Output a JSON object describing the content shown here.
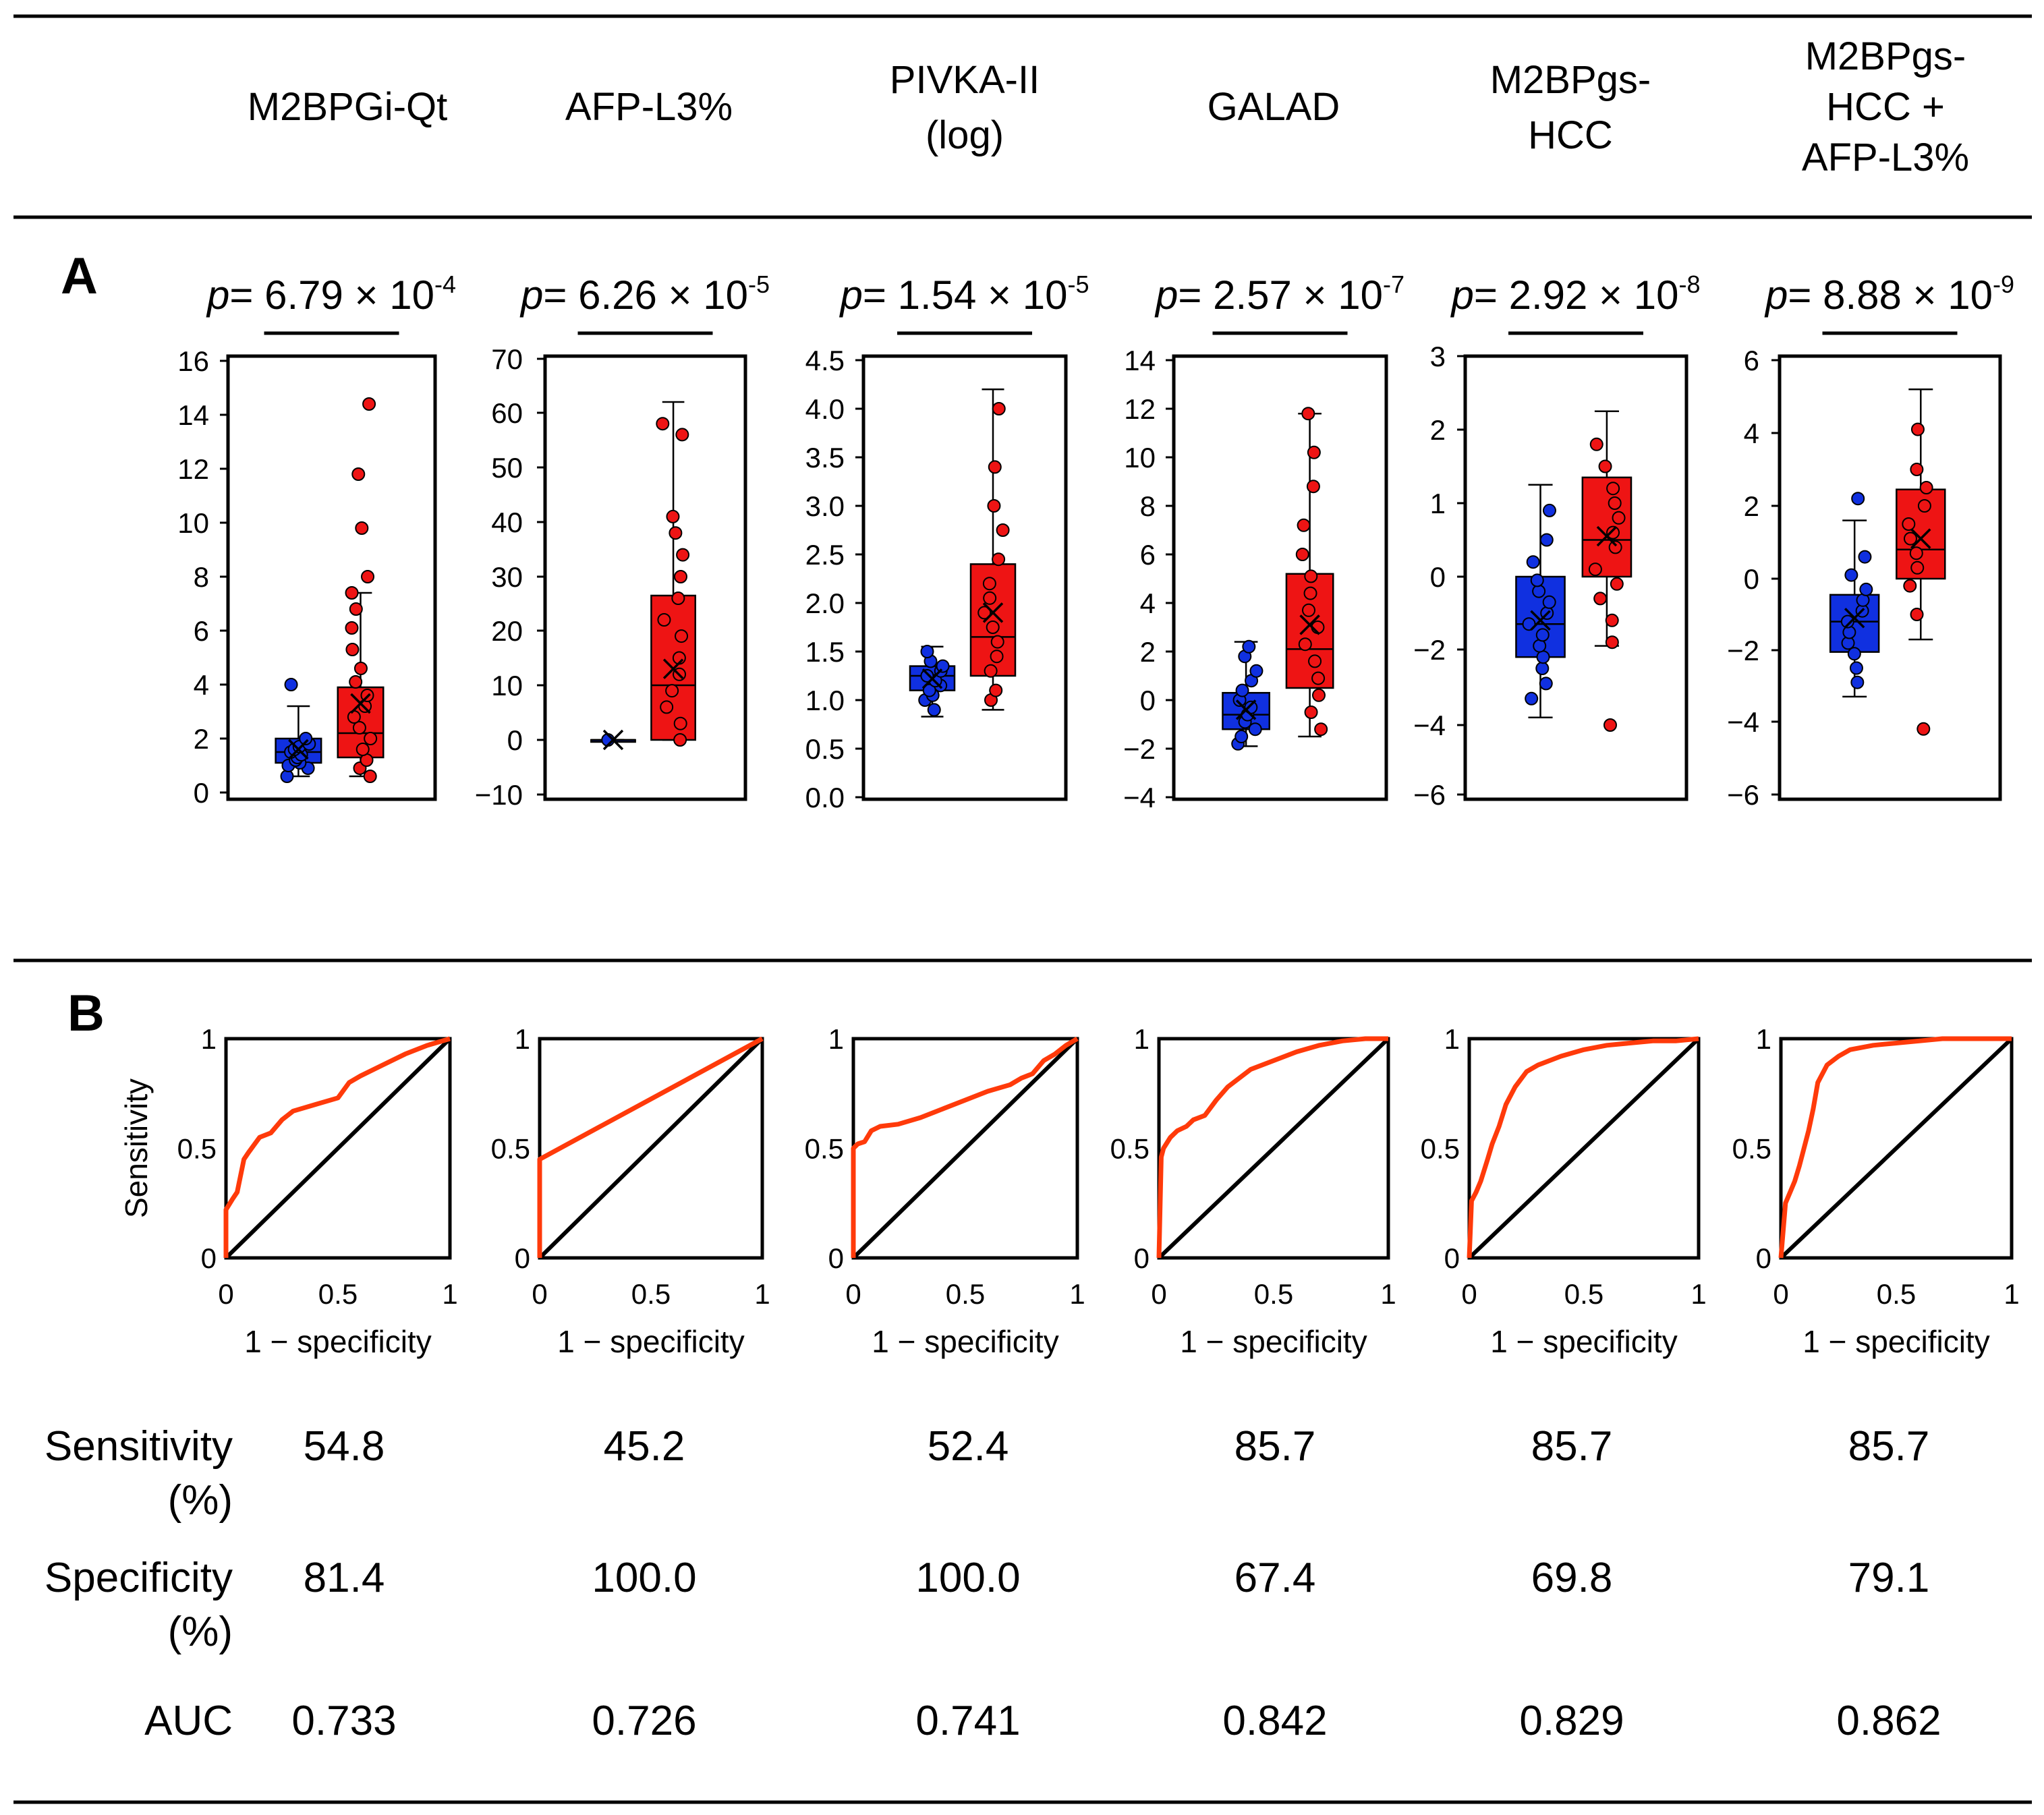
{
  "columns": [
    {
      "label": [
        "M2BPGi-Qt"
      ]
    },
    {
      "label": [
        "AFP-L3%"
      ]
    },
    {
      "label": [
        "PIVKA-II",
        "(log)"
      ]
    },
    {
      "label": [
        "GALAD"
      ]
    },
    {
      "label": [
        "M2BPgs-",
        "HCC"
      ]
    },
    {
      "label": [
        "M2BPgs-",
        "HCC +",
        "AFP-L3%"
      ]
    }
  ],
  "panels": {
    "a": "A",
    "b": "B"
  },
  "p_prefix": "p",
  "p_equals": "= ",
  "p_times": " × 10",
  "colors": {
    "group1": "#1030e0",
    "group2": "#ee1414",
    "roc": "#ff3a0a",
    "line": "#000000"
  },
  "roc_axis": {
    "xlabel": "1 − specificity",
    "ylabel": "Sensitivity",
    "xticks": [
      "0",
      "0.5",
      "1"
    ],
    "yticks": [
      "0",
      "0.5",
      "1"
    ]
  },
  "table": {
    "rows": [
      {
        "label": [
          "Sensitivity",
          "(%)"
        ],
        "values": [
          "54.8",
          "45.2",
          "52.4",
          "85.7",
          "85.7",
          "85.7"
        ]
      },
      {
        "label": [
          "Specificity",
          "(%)"
        ],
        "values": [
          "81.4",
          "100.0",
          "100.0",
          "67.4",
          "69.8",
          "79.1"
        ]
      },
      {
        "label": [
          "AUC"
        ],
        "values": [
          "0.733",
          "0.726",
          "0.741",
          "0.842",
          "0.829",
          "0.862"
        ]
      }
    ]
  },
  "chart_data": [
    {
      "type": "box",
      "title": "M2BPGi-Qt",
      "p_value": {
        "mantissa": "6.79",
        "exponent": "-4"
      },
      "ylim": [
        0,
        16
      ],
      "yticks": [
        "0",
        "2",
        "4",
        "6",
        "8",
        "10",
        "12",
        "14",
        "16"
      ],
      "groups": [
        {
          "color": "#1030e0",
          "min": 0.6,
          "q1": 1.1,
          "median": 1.5,
          "q3": 2.0,
          "max": 3.2,
          "mean": 1.6,
          "points": [
            0.6,
            0.9,
            1.0,
            1.1,
            1.2,
            1.3,
            1.4,
            1.5,
            1.6,
            1.7,
            1.8,
            2.0,
            4.0
          ]
        },
        {
          "color": "#ee1414",
          "min": 0.6,
          "q1": 1.3,
          "median": 2.2,
          "q3": 3.9,
          "max": 7.4,
          "mean": 3.3,
          "points": [
            0.6,
            0.9,
            1.2,
            1.6,
            2.0,
            2.4,
            2.8,
            3.2,
            3.6,
            4.1,
            4.6,
            5.3,
            6.1,
            6.8,
            7.4,
            8.0,
            9.8,
            11.8,
            14.4
          ]
        }
      ]
    },
    {
      "type": "box",
      "title": "AFP-L3%",
      "p_value": {
        "mantissa": "6.26",
        "exponent": "-5"
      },
      "ylim": [
        -10,
        70
      ],
      "yticks": [
        "−10",
        "0",
        "10",
        "20",
        "30",
        "40",
        "50",
        "60",
        "70"
      ],
      "groups": [
        {
          "color": "#1030e0",
          "min": 0,
          "q1": 0,
          "median": 0,
          "q3": 0,
          "max": 0,
          "mean": 0,
          "points": [
            0
          ]
        },
        {
          "color": "#ee1414",
          "min": 0,
          "q1": 0,
          "median": 10,
          "q3": 26.5,
          "max": 62,
          "mean": 13,
          "points": [
            0,
            3,
            6,
            9,
            12,
            15,
            19,
            22,
            26,
            30,
            34,
            38,
            41,
            56,
            58
          ]
        }
      ]
    },
    {
      "type": "box",
      "title": "PIVKA-II (log)",
      "p_value": {
        "mantissa": "1.54",
        "exponent": "-5"
      },
      "ylim": [
        0,
        4.5
      ],
      "yticks": [
        "0.0",
        "0.5",
        "1.0",
        "1.5",
        "2.0",
        "2.5",
        "3.0",
        "3.5",
        "4.0",
        "4.5"
      ],
      "groups": [
        {
          "color": "#1030e0",
          "min": 0.83,
          "q1": 1.1,
          "median": 1.25,
          "q3": 1.35,
          "max": 1.55,
          "mean": 1.22,
          "points": [
            0.9,
            1.0,
            1.05,
            1.1,
            1.15,
            1.2,
            1.25,
            1.3,
            1.35,
            1.4,
            1.5
          ]
        },
        {
          "color": "#ee1414",
          "min": 0.9,
          "q1": 1.25,
          "median": 1.65,
          "q3": 2.4,
          "max": 4.2,
          "mean": 1.9,
          "points": [
            1.0,
            1.1,
            1.3,
            1.45,
            1.6,
            1.75,
            1.9,
            2.05,
            2.2,
            2.45,
            2.75,
            3.0,
            3.4,
            4.0
          ]
        }
      ]
    },
    {
      "type": "box",
      "title": "GALAD",
      "p_value": {
        "mantissa": "2.57",
        "exponent": "-7"
      },
      "ylim": [
        -4,
        14
      ],
      "yticks": [
        "−4",
        "−2",
        "0",
        "2",
        "4",
        "6",
        "8",
        "10",
        "12",
        "14"
      ],
      "groups": [
        {
          "color": "#1030e0",
          "min": -1.9,
          "q1": -1.2,
          "median": -0.6,
          "q3": 0.3,
          "max": 2.4,
          "mean": -0.4,
          "points": [
            -1.8,
            -1.5,
            -1.2,
            -0.9,
            -0.6,
            -0.3,
            0.0,
            0.4,
            0.8,
            1.2,
            1.8,
            2.2
          ]
        },
        {
          "color": "#ee1414",
          "min": -1.5,
          "q1": 0.5,
          "median": 2.1,
          "q3": 5.2,
          "max": 11.8,
          "mean": 3.1,
          "points": [
            -1.2,
            -0.5,
            0.2,
            0.9,
            1.6,
            2.3,
            3.0,
            3.7,
            4.4,
            5.1,
            6.0,
            7.2,
            8.8,
            10.2,
            11.8
          ]
        }
      ]
    },
    {
      "type": "box",
      "title": "M2BPgs-HCC",
      "p_value": {
        "mantissa": "2.92",
        "exponent": "-8"
      },
      "ylim": [
        -6,
        3
      ],
      "yticks": [
        "−6",
        "−4",
        "−2",
        "0",
        "1",
        "2",
        "3"
      ],
      "groups": [
        {
          "color": "#1030e0",
          "min": -3.8,
          "q1": -2.2,
          "median": -1.3,
          "q3": 0.0,
          "max": 1.25,
          "mean": -1.2,
          "points": [
            -3.3,
            -2.9,
            -2.5,
            -2.2,
            -1.9,
            -1.6,
            -1.3,
            -1.0,
            -0.7,
            -0.4,
            -0.1,
            0.2,
            0.5,
            0.9
          ]
        },
        {
          "color": "#ee1414",
          "min": -1.9,
          "q1": 0.0,
          "median": 0.5,
          "q3": 1.35,
          "max": 2.25,
          "mean": 0.55,
          "points": [
            -4.0,
            -1.8,
            -1.2,
            -0.6,
            -0.2,
            0.1,
            0.4,
            0.6,
            0.8,
            1.0,
            1.2,
            1.5,
            1.8
          ]
        }
      ]
    },
    {
      "type": "box",
      "title": "M2BPgs-HCC + AFP-L3%",
      "p_value": {
        "mantissa": "8.88",
        "exponent": "-9"
      },
      "ylim": [
        -6,
        6
      ],
      "yticks": [
        "−6",
        "−4",
        "−2",
        "0",
        "2",
        "4",
        "6"
      ],
      "groups": [
        {
          "color": "#1030e0",
          "min": -3.3,
          "q1": -2.05,
          "median": -1.2,
          "q3": -0.45,
          "max": 1.6,
          "mean": -1.1,
          "points": [
            -2.9,
            -2.5,
            -2.1,
            -1.8,
            -1.5,
            -1.2,
            -0.9,
            -0.6,
            -0.3,
            0.1,
            0.6,
            2.2
          ]
        },
        {
          "color": "#ee1414",
          "min": -1.7,
          "q1": 0.0,
          "median": 0.8,
          "q3": 2.45,
          "max": 5.2,
          "mean": 1.1,
          "points": [
            -4.2,
            -1.0,
            -0.2,
            0.3,
            0.7,
            1.1,
            1.5,
            2.0,
            2.5,
            3.0,
            4.1
          ]
        }
      ]
    },
    {
      "type": "line",
      "title": "ROC M2BPGi-Qt",
      "xlabel": "1 − specificity",
      "ylabel": "Sensitivity",
      "xlim": [
        0,
        1
      ],
      "ylim": [
        0,
        1
      ],
      "series": [
        {
          "name": "ROC",
          "x": [
            0,
            0,
            0.03,
            0.05,
            0.08,
            0.1,
            0.15,
            0.2,
            0.25,
            0.3,
            0.4,
            0.5,
            0.55,
            0.6,
            0.7,
            0.8,
            0.9,
            1
          ],
          "y": [
            0,
            0.22,
            0.27,
            0.3,
            0.45,
            0.48,
            0.55,
            0.57,
            0.63,
            0.67,
            0.7,
            0.73,
            0.8,
            0.83,
            0.88,
            0.93,
            0.97,
            1
          ]
        },
        {
          "name": "reference",
          "x": [
            0,
            1
          ],
          "y": [
            0,
            1
          ]
        }
      ]
    },
    {
      "type": "line",
      "title": "ROC AFP-L3%",
      "xlabel": "1 − specificity",
      "ylabel": "Sensitivity",
      "xlim": [
        0,
        1
      ],
      "ylim": [
        0,
        1
      ],
      "series": [
        {
          "name": "ROC",
          "x": [
            0,
            0,
            1
          ],
          "y": [
            0,
            0.45,
            1
          ]
        },
        {
          "name": "reference",
          "x": [
            0,
            1
          ],
          "y": [
            0,
            1
          ]
        }
      ]
    },
    {
      "type": "line",
      "title": "ROC PIVKA-II (log)",
      "xlabel": "1 − specificity",
      "ylabel": "Sensitivity",
      "xlim": [
        0,
        1
      ],
      "ylim": [
        0,
        1
      ],
      "series": [
        {
          "name": "ROC",
          "x": [
            0,
            0,
            0.02,
            0.05,
            0.08,
            0.12,
            0.2,
            0.3,
            0.4,
            0.5,
            0.6,
            0.7,
            0.75,
            0.8,
            0.85,
            0.9,
            0.95,
            1
          ],
          "y": [
            0,
            0.5,
            0.52,
            0.53,
            0.58,
            0.6,
            0.61,
            0.64,
            0.68,
            0.72,
            0.76,
            0.79,
            0.82,
            0.84,
            0.9,
            0.93,
            0.97,
            1
          ]
        },
        {
          "name": "reference",
          "x": [
            0,
            1
          ],
          "y": [
            0,
            1
          ]
        }
      ]
    },
    {
      "type": "line",
      "title": "ROC GALAD",
      "xlabel": "1 − specificity",
      "ylabel": "Sensitivity",
      "xlim": [
        0,
        1
      ],
      "ylim": [
        0,
        1
      ],
      "series": [
        {
          "name": "ROC",
          "x": [
            0,
            0.01,
            0.02,
            0.05,
            0.08,
            0.12,
            0.15,
            0.2,
            0.25,
            0.3,
            0.35,
            0.4,
            0.45,
            0.5,
            0.6,
            0.7,
            0.8,
            0.9,
            1
          ],
          "y": [
            0,
            0.46,
            0.5,
            0.55,
            0.58,
            0.6,
            0.63,
            0.65,
            0.72,
            0.78,
            0.82,
            0.86,
            0.88,
            0.9,
            0.94,
            0.97,
            0.99,
            1,
            1
          ]
        },
        {
          "name": "reference",
          "x": [
            0,
            1
          ],
          "y": [
            0,
            1
          ]
        }
      ]
    },
    {
      "type": "line",
      "title": "ROC M2BPgs-HCC",
      "xlabel": "1 − specificity",
      "ylabel": "Sensitivity",
      "xlim": [
        0,
        1
      ],
      "ylim": [
        0,
        1
      ],
      "series": [
        {
          "name": "ROC",
          "x": [
            0,
            0.01,
            0.03,
            0.05,
            0.08,
            0.1,
            0.13,
            0.16,
            0.2,
            0.25,
            0.3,
            0.4,
            0.5,
            0.6,
            0.7,
            0.8,
            0.9,
            1
          ],
          "y": [
            0,
            0.26,
            0.3,
            0.35,
            0.45,
            0.52,
            0.6,
            0.7,
            0.78,
            0.85,
            0.88,
            0.92,
            0.95,
            0.97,
            0.98,
            0.99,
            0.99,
            1
          ]
        },
        {
          "name": "reference",
          "x": [
            0,
            1
          ],
          "y": [
            0,
            1
          ]
        }
      ]
    },
    {
      "type": "line",
      "title": "ROC M2BPgs-HCC + AFP-L3%",
      "xlabel": "1 − specificity",
      "ylabel": "Sensitivity",
      "xlim": [
        0,
        1
      ],
      "ylim": [
        0,
        1
      ],
      "series": [
        {
          "name": "ROC",
          "x": [
            0,
            0.02,
            0.04,
            0.06,
            0.08,
            0.1,
            0.12,
            0.14,
            0.16,
            0.2,
            0.25,
            0.3,
            0.4,
            0.5,
            0.6,
            0.7,
            0.8,
            0.9,
            1
          ],
          "y": [
            0,
            0.25,
            0.3,
            0.35,
            0.42,
            0.5,
            0.58,
            0.68,
            0.8,
            0.88,
            0.92,
            0.95,
            0.97,
            0.98,
            0.99,
            1,
            1,
            1,
            1
          ]
        },
        {
          "name": "reference",
          "x": [
            0,
            1
          ],
          "y": [
            0,
            1
          ]
        }
      ]
    }
  ]
}
